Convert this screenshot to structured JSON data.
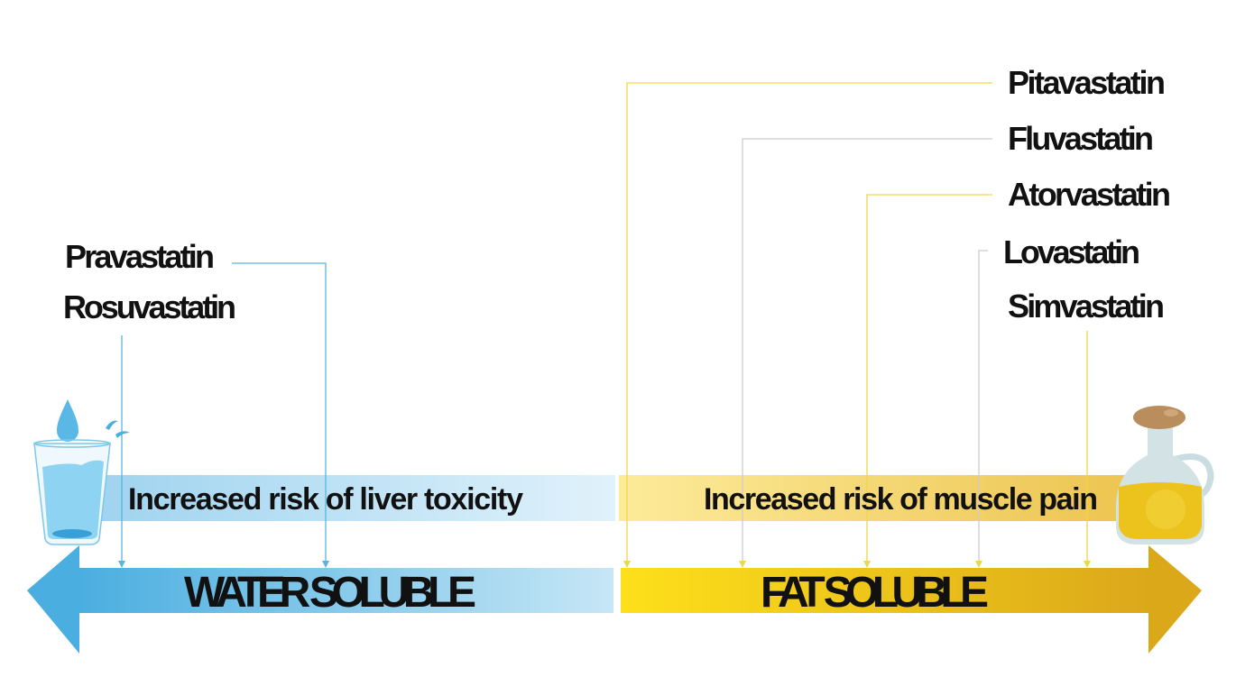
{
  "water": {
    "title": "WATER SOLUBLE",
    "risk": "Increased risk of liver toxicity",
    "drugs": [
      "Pravastatin",
      "Rosuvastatin"
    ],
    "color": "#4aaee0",
    "icon": "water-glass-icon"
  },
  "fat": {
    "title": "FAT SOLUBLE",
    "risk": "Increased risk of muscle pain",
    "drugs": [
      "Pitavastatin",
      "Fluvastatin",
      "Atorvastatin",
      "Lovastatin",
      "Simvastatin"
    ],
    "color": "#f5cf1a",
    "icon": "oil-bottle-icon"
  }
}
